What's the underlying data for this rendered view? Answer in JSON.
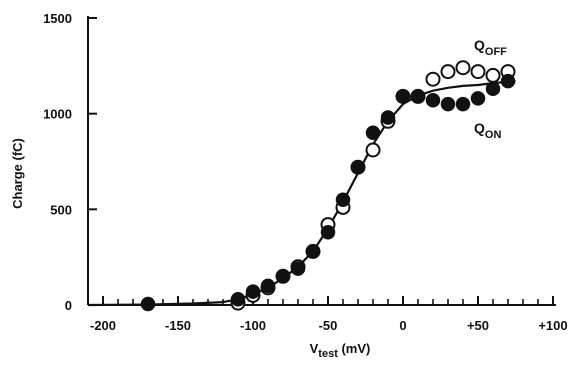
{
  "chart_data": {
    "type": "scatter",
    "xlabel": "V",
    "xlabel_sub": "test",
    "xlabel_unit": " (mV)",
    "ylabel": "Charge (fC)",
    "xlim": [
      -210,
      102
    ],
    "ylim": [
      0,
      1500
    ],
    "x_ticks": [
      -200,
      -150,
      -100,
      -50,
      0,
      50,
      100
    ],
    "x_tick_labels": [
      "-200",
      "-150",
      "-100",
      "-50",
      "0",
      "+50",
      "+100"
    ],
    "y_ticks": [
      0,
      500,
      1000,
      1500
    ],
    "y_tick_labels": [
      "0",
      "500",
      "1000",
      "1500"
    ],
    "grid": false,
    "series": [
      {
        "name": "Q",
        "name_sub": "OFF",
        "marker": "open-circle",
        "color": "#111111",
        "x": [
          -110,
          -100,
          -90,
          -80,
          -70,
          -60,
          -50,
          -40,
          -30,
          -20,
          -10,
          0,
          10,
          20,
          30,
          40,
          50,
          60,
          70
        ],
        "y": [
          10,
          50,
          90,
          150,
          200,
          280,
          420,
          510,
          720,
          810,
          960,
          1090,
          1090,
          1180,
          1220,
          1240,
          1220,
          1200,
          1220
        ]
      },
      {
        "name": "Q",
        "name_sub": "ON",
        "marker": "filled-circle",
        "color": "#111111",
        "x": [
          -170,
          -110,
          -100,
          -90,
          -80,
          -70,
          -60,
          -50,
          -40,
          -30,
          -20,
          -10,
          0,
          10,
          20,
          30,
          40,
          50,
          60,
          70
        ],
        "y": [
          5,
          30,
          70,
          100,
          150,
          190,
          280,
          380,
          550,
          720,
          900,
          980,
          1090,
          1090,
          1070,
          1050,
          1050,
          1080,
          1130,
          1170
        ]
      }
    ],
    "fit_curve": {
      "x": [
        -210,
        -170,
        -140,
        -120,
        -110,
        -100,
        -90,
        -80,
        -70,
        -60,
        -50,
        -40,
        -30,
        -20,
        -10,
        0,
        10,
        20,
        30,
        40,
        50,
        60,
        75
      ],
      "y": [
        0,
        2,
        8,
        15,
        30,
        55,
        90,
        140,
        200,
        280,
        400,
        540,
        690,
        840,
        960,
        1050,
        1095,
        1120,
        1135,
        1145,
        1150,
        1160,
        1170
      ]
    }
  }
}
